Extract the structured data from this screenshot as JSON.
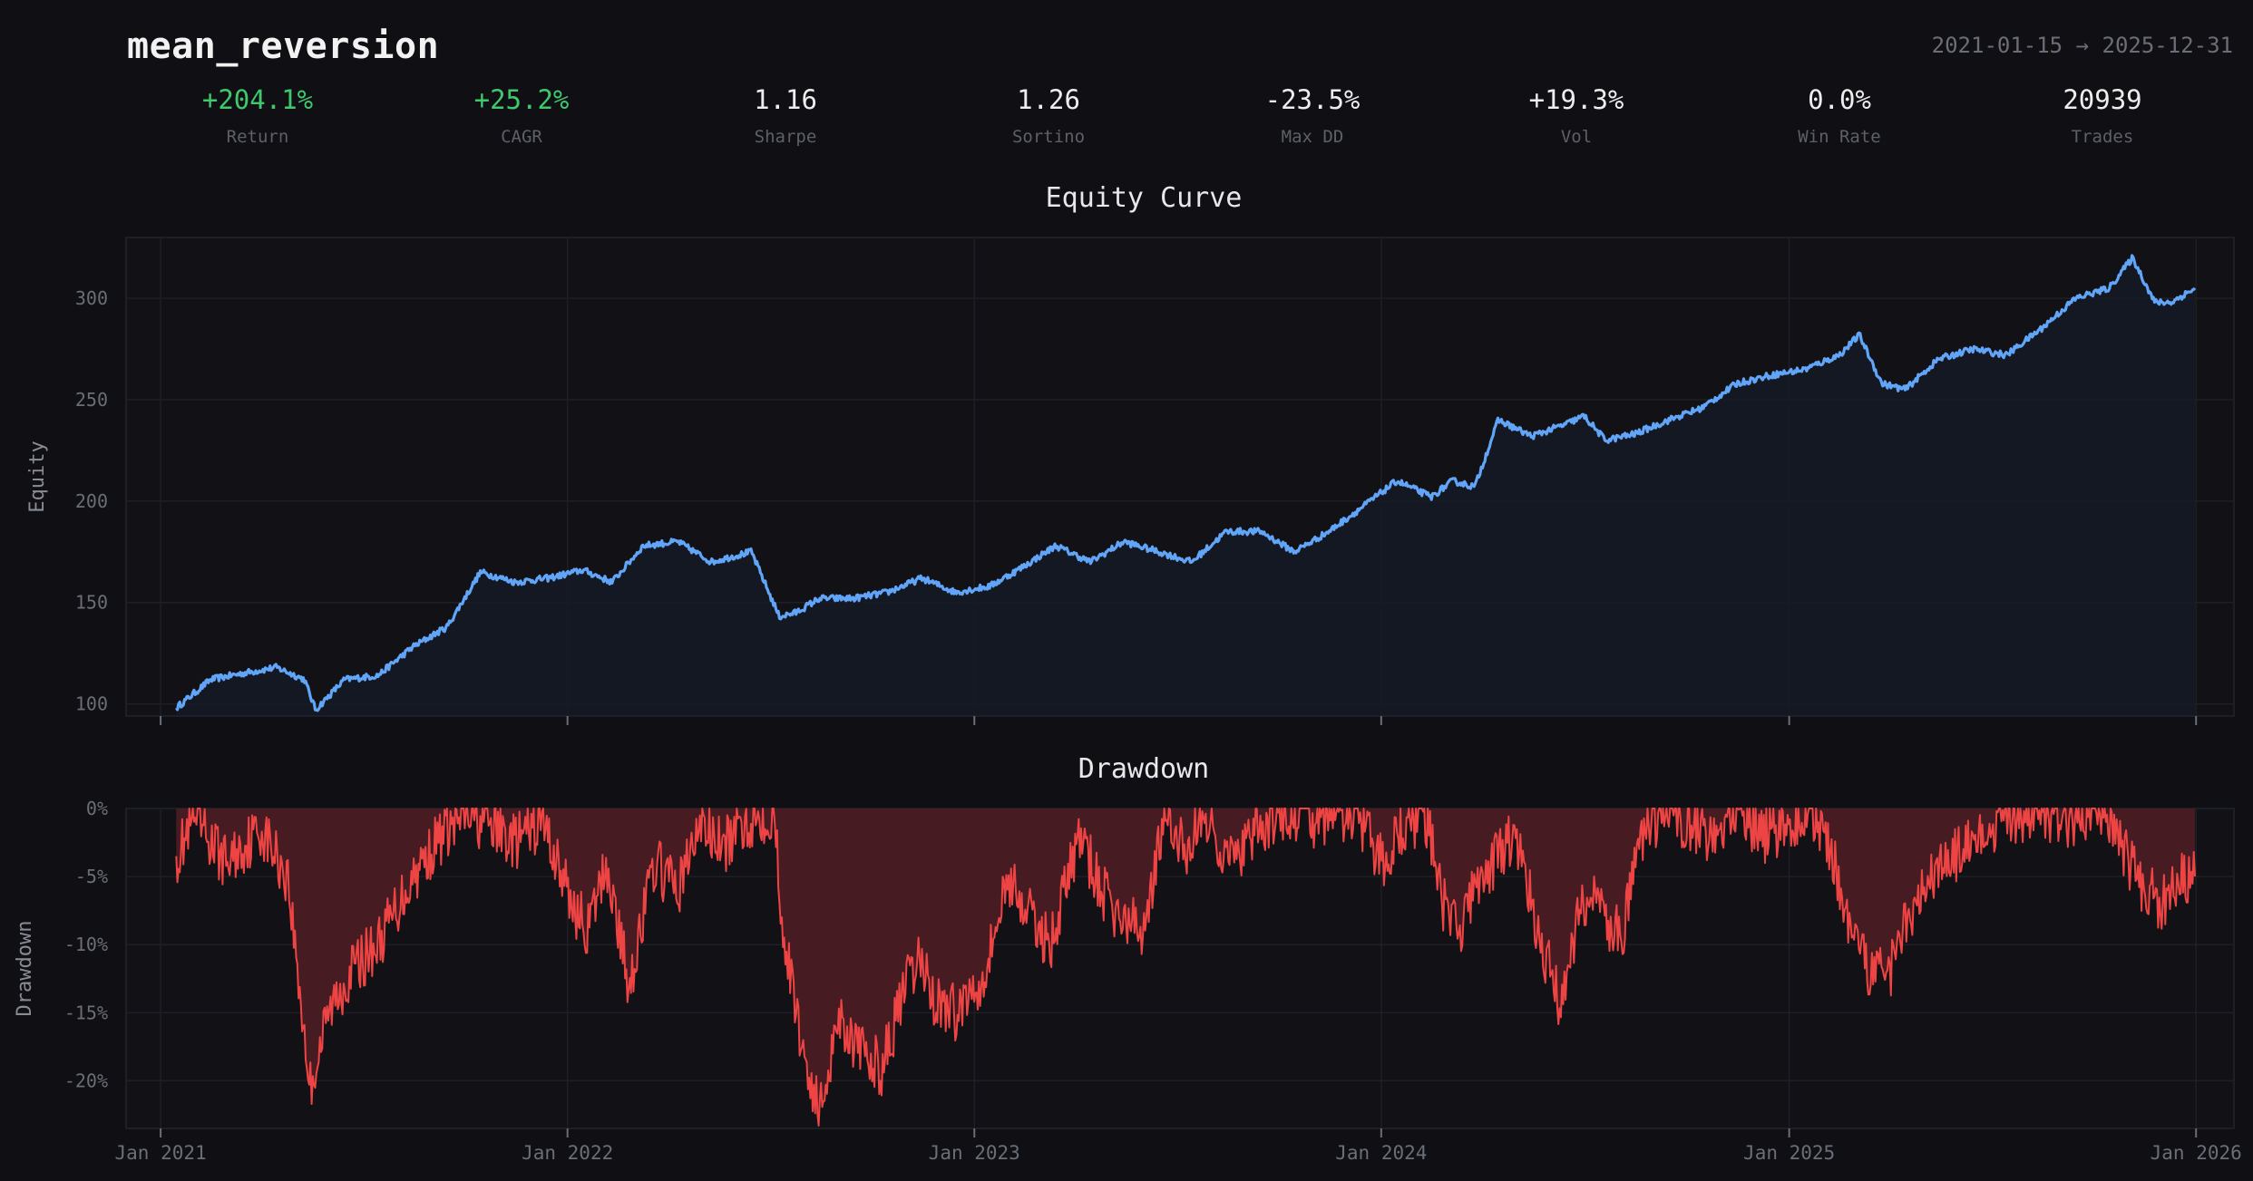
{
  "header": {
    "title": "mean_reversion",
    "start_date": "2021-01-15",
    "arrow": "→",
    "end_date": "2025-12-31"
  },
  "stats": [
    {
      "value": "+204.1%",
      "label": "Return",
      "positive": true
    },
    {
      "value": "+25.2%",
      "label": "CAGR",
      "positive": true
    },
    {
      "value": "1.16",
      "label": "Sharpe",
      "positive": false
    },
    {
      "value": "1.26",
      "label": "Sortino",
      "positive": false
    },
    {
      "value": "-23.5%",
      "label": "Max DD",
      "positive": false
    },
    {
      "value": "+19.3%",
      "label": "Vol",
      "positive": false
    },
    {
      "value": "0.0%",
      "label": "Win Rate",
      "positive": false
    },
    {
      "value": "20939",
      "label": "Trades",
      "positive": false
    }
  ],
  "colors": {
    "background": "#0f0f14",
    "equity_line": "#60a5fa",
    "drawdown_line": "#ef4444",
    "drawdown_fill": "#4a1c22",
    "positive": "#3fc86d"
  },
  "chart_data": [
    {
      "type": "line",
      "title": "Equity Curve",
      "ylabel": "Equity",
      "xlabel": "",
      "ylim": [
        94,
        330
      ],
      "yticks": [
        100,
        150,
        200,
        250,
        300
      ],
      "xlim": [
        "2020-12-01",
        "2026-02-04"
      ],
      "xticks": [
        "2021-01-01",
        "2022-01-01",
        "2023-01-01",
        "2024-01-01",
        "2025-01-01",
        "2026-01-01"
      ],
      "xtick_labels": [
        "Jan 2021",
        "Jan 2022",
        "Jan 2023",
        "Jan 2024",
        "Jan 2025",
        "Jan 2026"
      ],
      "grid": true,
      "series": [
        {
          "x": [
            "2021-01-15",
            "2021-02-15",
            "2021-03-15",
            "2021-04-15",
            "2021-05-10",
            "2021-05-20",
            "2021-06-15",
            "2021-07-15",
            "2021-08-15",
            "2021-09-15",
            "2021-10-15",
            "2021-11-15",
            "2021-12-15",
            "2022-01-15",
            "2022-02-10",
            "2022-03-10",
            "2022-04-10",
            "2022-05-10",
            "2022-06-15",
            "2022-07-10",
            "2022-07-25",
            "2022-08-15",
            "2022-09-15",
            "2022-10-15",
            "2022-11-15",
            "2022-12-15",
            "2023-01-15",
            "2023-02-15",
            "2023-03-15",
            "2023-04-15",
            "2023-05-15",
            "2023-06-15",
            "2023-07-15",
            "2023-08-15",
            "2023-09-15",
            "2023-10-15",
            "2023-11-15",
            "2023-12-15",
            "2024-01-15",
            "2024-02-15",
            "2024-03-05",
            "2024-03-25",
            "2024-04-15",
            "2024-05-15",
            "2024-06-15",
            "2024-07-01",
            "2024-07-20",
            "2024-08-15",
            "2024-09-15",
            "2024-10-15",
            "2024-11-15",
            "2024-12-15",
            "2025-01-15",
            "2025-02-15",
            "2025-03-05",
            "2025-03-25",
            "2025-04-15",
            "2025-05-15",
            "2025-06-15",
            "2025-07-15",
            "2025-08-15",
            "2025-09-15",
            "2025-10-15",
            "2025-11-05",
            "2025-11-25",
            "2025-12-10",
            "2025-12-31"
          ],
          "y": [
            98,
            112,
            115,
            118,
            112,
            97,
            112,
            114,
            128,
            138,
            165,
            160,
            162,
            166,
            160,
            178,
            180,
            170,
            175,
            143,
            145,
            152,
            152,
            155,
            162,
            155,
            158,
            168,
            178,
            170,
            180,
            175,
            170,
            185,
            185,
            175,
            185,
            197,
            210,
            202,
            210,
            207,
            240,
            232,
            238,
            242,
            230,
            233,
            240,
            246,
            258,
            262,
            265,
            272,
            282,
            258,
            255,
            270,
            275,
            272,
            285,
            300,
            305,
            320,
            298,
            298,
            305
          ],
          "name": ""
        }
      ]
    },
    {
      "type": "area",
      "title": "Drawdown",
      "ylabel": "Drawdown",
      "xlabel": "",
      "ylim": [
        -23.5,
        0
      ],
      "yticks": [
        0,
        -5,
        -10,
        -15,
        -20
      ],
      "ytick_labels": [
        "0%",
        "-5%",
        "-10%",
        "-15%",
        "-20%"
      ],
      "xlim": [
        "2020-12-01",
        "2026-02-04"
      ],
      "xticks": [
        "2021-01-01",
        "2022-01-01",
        "2023-01-01",
        "2024-01-01",
        "2025-01-01",
        "2026-01-01"
      ],
      "xtick_labels": [
        "Jan 2021",
        "Jan 2022",
        "Jan 2023",
        "Jan 2024",
        "Jan 2025",
        "Jan 2026"
      ],
      "grid": true,
      "series": [
        {
          "x": [
            "2021-01-15",
            "2021-02-01",
            "2021-03-01",
            "2021-04-01",
            "2021-04-25",
            "2021-05-15",
            "2021-06-01",
            "2021-06-20",
            "2021-07-15",
            "2021-08-15",
            "2021-09-10",
            "2021-10-01",
            "2021-10-20",
            "2021-11-15",
            "2021-12-10",
            "2022-01-05",
            "2022-01-20",
            "2022-02-05",
            "2022-02-25",
            "2022-03-20",
            "2022-04-10",
            "2022-05-01",
            "2022-05-20",
            "2022-06-10",
            "2022-06-25",
            "2022-07-05",
            "2022-07-15",
            "2022-08-01",
            "2022-08-15",
            "2022-09-01",
            "2022-09-20",
            "2022-10-10",
            "2022-11-01",
            "2022-11-15",
            "2022-11-25",
            "2022-12-15",
            "2023-01-10",
            "2023-02-01",
            "2023-02-20",
            "2023-03-10",
            "2023-04-05",
            "2023-04-25",
            "2023-05-10",
            "2023-06-01",
            "2023-06-20",
            "2023-07-10",
            "2023-07-25",
            "2023-08-20",
            "2023-09-10",
            "2023-09-25",
            "2023-10-10",
            "2023-10-30",
            "2023-11-20",
            "2023-12-10",
            "2024-01-01",
            "2024-01-20",
            "2024-02-10",
            "2024-02-25",
            "2024-03-10",
            "2024-03-25",
            "2024-04-10",
            "2024-05-01",
            "2024-05-20",
            "2024-06-10",
            "2024-06-25",
            "2024-07-10",
            "2024-07-25",
            "2024-08-05",
            "2024-08-25",
            "2024-09-15",
            "2024-10-05",
            "2024-10-25",
            "2024-11-15",
            "2024-12-10",
            "2025-01-05",
            "2025-01-25",
            "2025-02-10",
            "2025-02-25",
            "2025-03-15",
            "2025-04-01",
            "2025-04-15",
            "2025-05-01",
            "2025-05-20",
            "2025-06-10",
            "2025-07-01",
            "2025-07-20",
            "2025-08-15",
            "2025-09-05",
            "2025-09-25",
            "2025-10-15",
            "2025-11-01",
            "2025-11-15",
            "2025-12-01",
            "2025-12-15",
            "2025-12-31"
          ],
          "y": [
            -3.5,
            -1,
            -4,
            -1.5,
            -5,
            -20.5,
            -15,
            -12,
            -10,
            -5,
            -2,
            -0.5,
            -1,
            -2.5,
            -1,
            -7,
            -9,
            -4,
            -13,
            -4,
            -6,
            -1,
            -3,
            -1,
            -0.5,
            -0.5,
            -10,
            -18,
            -22.5,
            -15,
            -18,
            -19,
            -13,
            -11,
            -14,
            -15,
            -12,
            -5,
            -8,
            -10,
            -2,
            -6,
            -8,
            -9,
            -1,
            -3,
            -0.5,
            -4,
            -2,
            -1,
            -0.5,
            -1,
            -0.5,
            -0.5,
            -4,
            -1.5,
            -0.5,
            -7,
            -9,
            -6,
            -4,
            -2,
            -9,
            -14.5,
            -8,
            -6,
            -9,
            -9,
            -1,
            -0.5,
            -1,
            -2,
            -0.5,
            -2,
            -1,
            -0.5,
            -4,
            -10,
            -12,
            -12,
            -8,
            -6,
            -4,
            -3,
            -2,
            -0.5,
            -0.5,
            -1,
            -0.5,
            -0.5,
            -4,
            -6,
            -7,
            -5,
            -5
          ],
          "name": ""
        }
      ]
    }
  ]
}
